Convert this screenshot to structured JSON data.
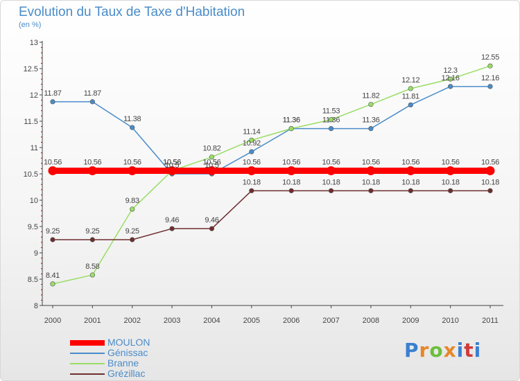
{
  "title": "Evolution du Taux de Taxe d'Habitation",
  "subtitle": "(en %)",
  "logo_text": "Proxiti",
  "chart_data": {
    "type": "line",
    "x": [
      2000,
      2001,
      2002,
      2003,
      2004,
      2005,
      2006,
      2007,
      2008,
      2009,
      2010,
      2011
    ],
    "ylim": [
      8,
      13
    ],
    "yticks": [
      8,
      8.5,
      9,
      9.5,
      10,
      10.5,
      11,
      11.5,
      12,
      12.5,
      13
    ],
    "grid": false,
    "legend_position": "bottom-left",
    "series": [
      {
        "name": "MOULON",
        "color": "#ff0000",
        "values": [
          10.56,
          10.56,
          10.56,
          10.56,
          10.56,
          10.56,
          10.56,
          10.56,
          10.56,
          10.56,
          10.56,
          10.56
        ],
        "labels": [
          "10.56",
          "10.56",
          "10.56",
          "10.56",
          "10.56",
          "10.56",
          "10.56",
          "10.56",
          "10.56",
          "10.56",
          "10.56",
          "10.56"
        ]
      },
      {
        "name": "Génissac",
        "color": "#4a8cc9",
        "values": [
          11.87,
          11.87,
          11.38,
          10.5,
          10.5,
          10.92,
          11.36,
          11.36,
          11.36,
          11.81,
          12.16,
          12.16
        ],
        "labels": [
          "11.87",
          "11.87",
          "11.38",
          "10.5",
          "10.5",
          "10.92",
          "11.36",
          "11.36",
          "11.36",
          "11.81",
          "12.16",
          "12.16"
        ]
      },
      {
        "name": "Branne",
        "color": "#99dd66",
        "values": [
          8.41,
          8.58,
          9.83,
          10.56,
          10.82,
          11.14,
          11.36,
          11.53,
          11.82,
          12.12,
          12.3,
          12.55
        ],
        "labels": [
          "8.41",
          "8.58",
          "9.83",
          "10.56",
          "10.82",
          "11.14",
          "11.36",
          "11.53",
          "11.82",
          "12.12",
          "12.3",
          "12.55"
        ]
      },
      {
        "name": "Grézillac",
        "color": "#6e2e2e",
        "values": [
          9.25,
          9.25,
          9.25,
          9.46,
          9.46,
          10.18,
          10.18,
          10.18,
          10.18,
          10.18,
          10.18,
          10.18
        ],
        "labels": [
          "9.25",
          "9.25",
          "9.25",
          "9.46",
          "9.46",
          "10.18",
          "10.18",
          "10.18",
          "10.18",
          "10.18",
          "10.18",
          "10.18"
        ]
      }
    ]
  }
}
